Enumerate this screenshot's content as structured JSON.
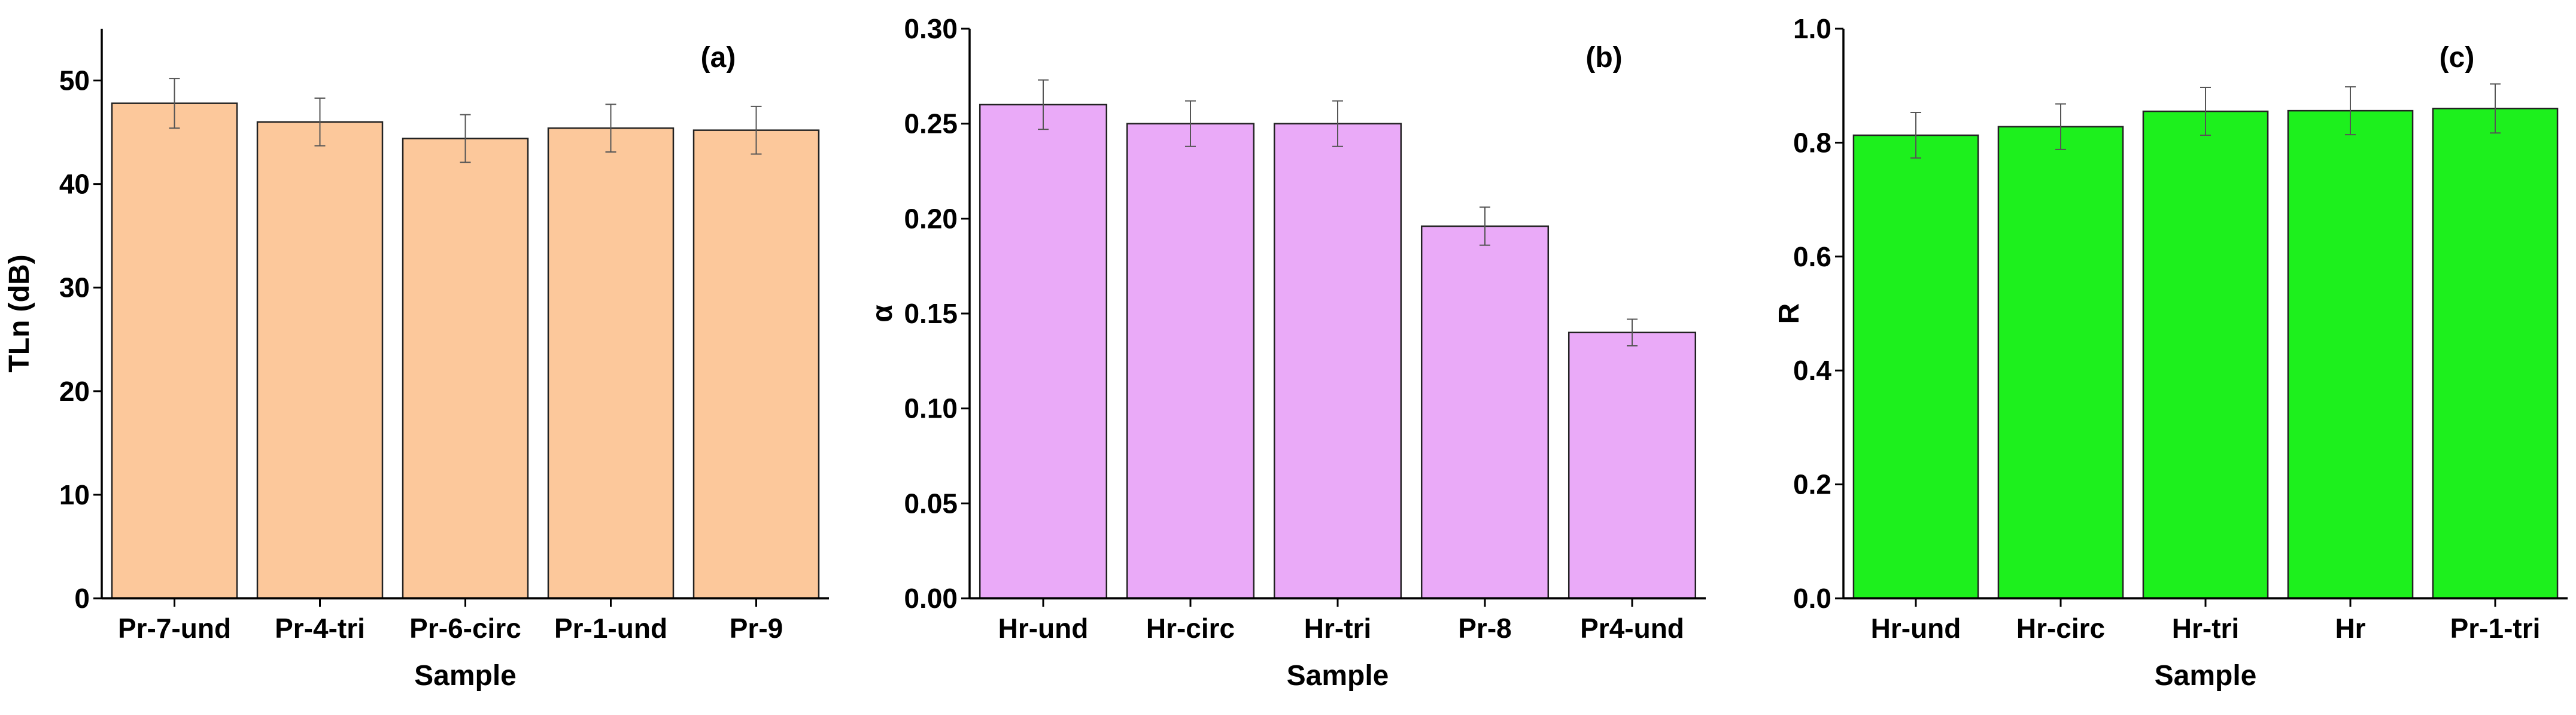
{
  "chart_data": [
    {
      "type": "bar",
      "panel_label": "(a)",
      "xlabel": "Sample",
      "ylabel": "TLn (dB)",
      "ylim": [
        0,
        55
      ],
      "yticks": [
        0,
        10,
        20,
        30,
        40,
        50
      ],
      "ytick_labels": [
        "0",
        "10",
        "20",
        "30",
        "40",
        "50"
      ],
      "categories": [
        "Pr-7-und",
        "Pr-4-tri",
        "Pr-6-circ",
        "Pr-1-und",
        "Pr-9"
      ],
      "values": [
        47.8,
        46.0,
        44.4,
        45.4,
        45.2
      ],
      "errors": [
        2.4,
        2.3,
        2.3,
        2.3,
        2.3
      ],
      "bar_color": "#fcc89b",
      "grid": false
    },
    {
      "type": "bar",
      "panel_label": "(b)",
      "xlabel": "Sample",
      "ylabel": "α",
      "ylim": [
        0,
        0.3
      ],
      "yticks": [
        0,
        0.05,
        0.1,
        0.15,
        0.2,
        0.25,
        0.3
      ],
      "ytick_labels": [
        "0.00",
        "0.05",
        "0.10",
        "0.15",
        "0.20",
        "0.25",
        "0.30"
      ],
      "categories": [
        "Hr-und",
        "Hr-circ",
        "Hr-tri",
        "Pr-8",
        "Pr4-und"
      ],
      "values": [
        0.26,
        0.25,
        0.25,
        0.196,
        0.14
      ],
      "errors": [
        0.013,
        0.012,
        0.012,
        0.01,
        0.007
      ],
      "bar_color": "#eaaaf8",
      "grid": false
    },
    {
      "type": "bar",
      "panel_label": "(c)",
      "xlabel": "Sample",
      "ylabel": "R",
      "ylim": [
        0,
        1.0
      ],
      "yticks": [
        0,
        0.2,
        0.4,
        0.6,
        0.8,
        1.0
      ],
      "ytick_labels": [
        "0.0",
        "0.2",
        "0.4",
        "0.6",
        "0.8",
        "1.0"
      ],
      "categories": [
        "Hr-und",
        "Hr-circ",
        "Hr-tri",
        "Hr",
        "Pr-1-tri"
      ],
      "values": [
        0.813,
        0.828,
        0.855,
        0.856,
        0.86
      ],
      "errors": [
        0.04,
        0.04,
        0.042,
        0.042,
        0.043
      ],
      "bar_color": "#1df01d",
      "grid": false
    }
  ]
}
